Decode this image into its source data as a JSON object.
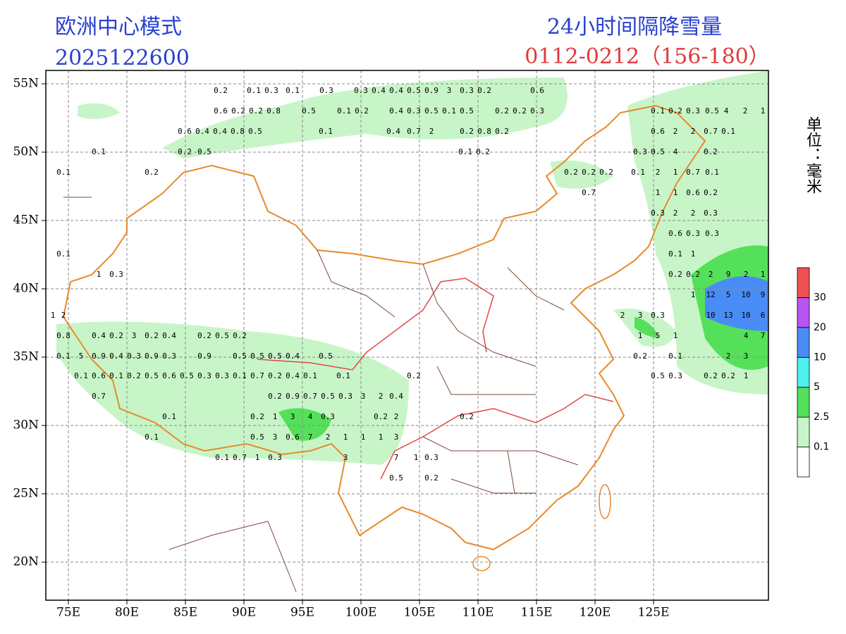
{
  "header": {
    "model": "欧洲中心模式",
    "init_time": "2025122600",
    "title": "24小时间隔降雪量",
    "period": "0112-0212（156-180）"
  },
  "unit": "单位：毫米",
  "map": {
    "xticks": [
      {
        "value": 75,
        "label": "75E"
      },
      {
        "value": 80,
        "label": "80E"
      },
      {
        "value": 85,
        "label": "85E"
      },
      {
        "value": 90,
        "label": "90E"
      },
      {
        "value": 95,
        "label": "95E"
      },
      {
        "value": 100,
        "label": "100E"
      },
      {
        "value": 105,
        "label": "105E"
      },
      {
        "value": 110,
        "label": "110E"
      },
      {
        "value": 115,
        "label": "115E"
      },
      {
        "value": 120,
        "label": "120E"
      },
      {
        "value": 125,
        "label": "125E"
      }
    ],
    "yticks": [
      {
        "value": 20,
        "label": "20N"
      },
      {
        "value": 25,
        "label": "25N"
      },
      {
        "value": 30,
        "label": "30N"
      },
      {
        "value": 35,
        "label": "35N"
      },
      {
        "value": 40,
        "label": "40N"
      },
      {
        "value": 45,
        "label": "45N"
      },
      {
        "value": 50,
        "label": "50N"
      },
      {
        "value": 55,
        "label": "55N"
      }
    ],
    "labels": [
      "0.2",
      "0.1",
      "0.3",
      "0.1",
      "0.3",
      "0.3",
      "0.4",
      "0.4",
      "0.5",
      "0.9",
      "3",
      "0.3",
      "0.2",
      "0.6",
      "0.6",
      "0.2",
      "0.2",
      "0.8",
      "0.5",
      "0.1",
      "0.2",
      "0.4",
      "0.3",
      "0.5",
      "0.1",
      "0.5",
      "0.2",
      "0.2",
      "0.3",
      "0.1",
      "0.2",
      "0.3",
      "0.5",
      "4",
      "2",
      "1",
      "0.1",
      "0.1",
      "0.2",
      "0.6",
      "0.4",
      "0.4",
      "0.8",
      "0.5",
      "0.1",
      "0.4",
      "0.7",
      "2",
      "0.2",
      "0.8",
      "0.2",
      "0.2",
      "0.5",
      "0.1",
      "0.2",
      "0.3",
      "0.5",
      "4",
      "0.2",
      "0.6",
      "2",
      "2",
      "0.7",
      "0.1",
      "0.2",
      "0.2",
      "0.2",
      "0.7",
      "0.1",
      "2",
      "1",
      "0.7",
      "0.1",
      "1",
      "1",
      "0.6",
      "0.2",
      "0.3",
      "2",
      "2",
      "0.3",
      "0.6",
      "0.3",
      "0.3",
      "0.1",
      "1",
      "0.2",
      "0.2",
      "2",
      "9",
      "2",
      "1",
      "1",
      "12",
      "5",
      "10",
      "9",
      "10",
      "13",
      "10",
      "6",
      "4",
      "7",
      "2",
      "3",
      "0.2",
      "0.2",
      "1",
      "2",
      "3",
      "0.3",
      "1",
      "5",
      "1",
      "0.2",
      "0.1",
      "0.5",
      "0.3",
      "0.1",
      "1",
      "0.3",
      "1",
      "2",
      "0.8",
      "0.4",
      "0.2",
      "3",
      "0.2",
      "0.4",
      "0.2",
      "0.5",
      "0.2",
      "0.1",
      "5",
      "0.9",
      "0.4",
      "0.3",
      "0.9",
      "0.3",
      "0.9",
      "0.5",
      "0.5",
      "0.5",
      "0.4",
      "0.5",
      "0.1",
      "0.6",
      "0.1",
      "0.2",
      "0.5",
      "0.6",
      "0.5",
      "0.3",
      "0.3",
      "0.1",
      "0.7",
      "0.2",
      "0.4",
      "0.1",
      "0.1",
      "0.2",
      "0.7",
      "0.2",
      "0.9",
      "0.7",
      "0.5",
      "0.3",
      "3",
      "2",
      "0.4",
      "0.1",
      "0.2",
      "1",
      "3",
      "4",
      "0.3",
      "0.2",
      "2",
      "0.2",
      "0.1",
      "0.5",
      "3",
      "0.6",
      "7",
      "2",
      "1",
      "1",
      "1",
      "3",
      "0.1",
      "0.7",
      "1",
      "0.3",
      "3",
      "7",
      "1",
      "0.3",
      "0.5",
      "0.2"
    ]
  },
  "legend": {
    "levels": [
      0.1,
      2.5,
      5,
      10,
      20,
      30
    ],
    "colors": [
      "#ffffff",
      "#c8f5c8",
      "#55e05a",
      "#4ff0f0",
      "#4a8cf5",
      "#b855f0",
      "#f05050"
    ]
  }
}
